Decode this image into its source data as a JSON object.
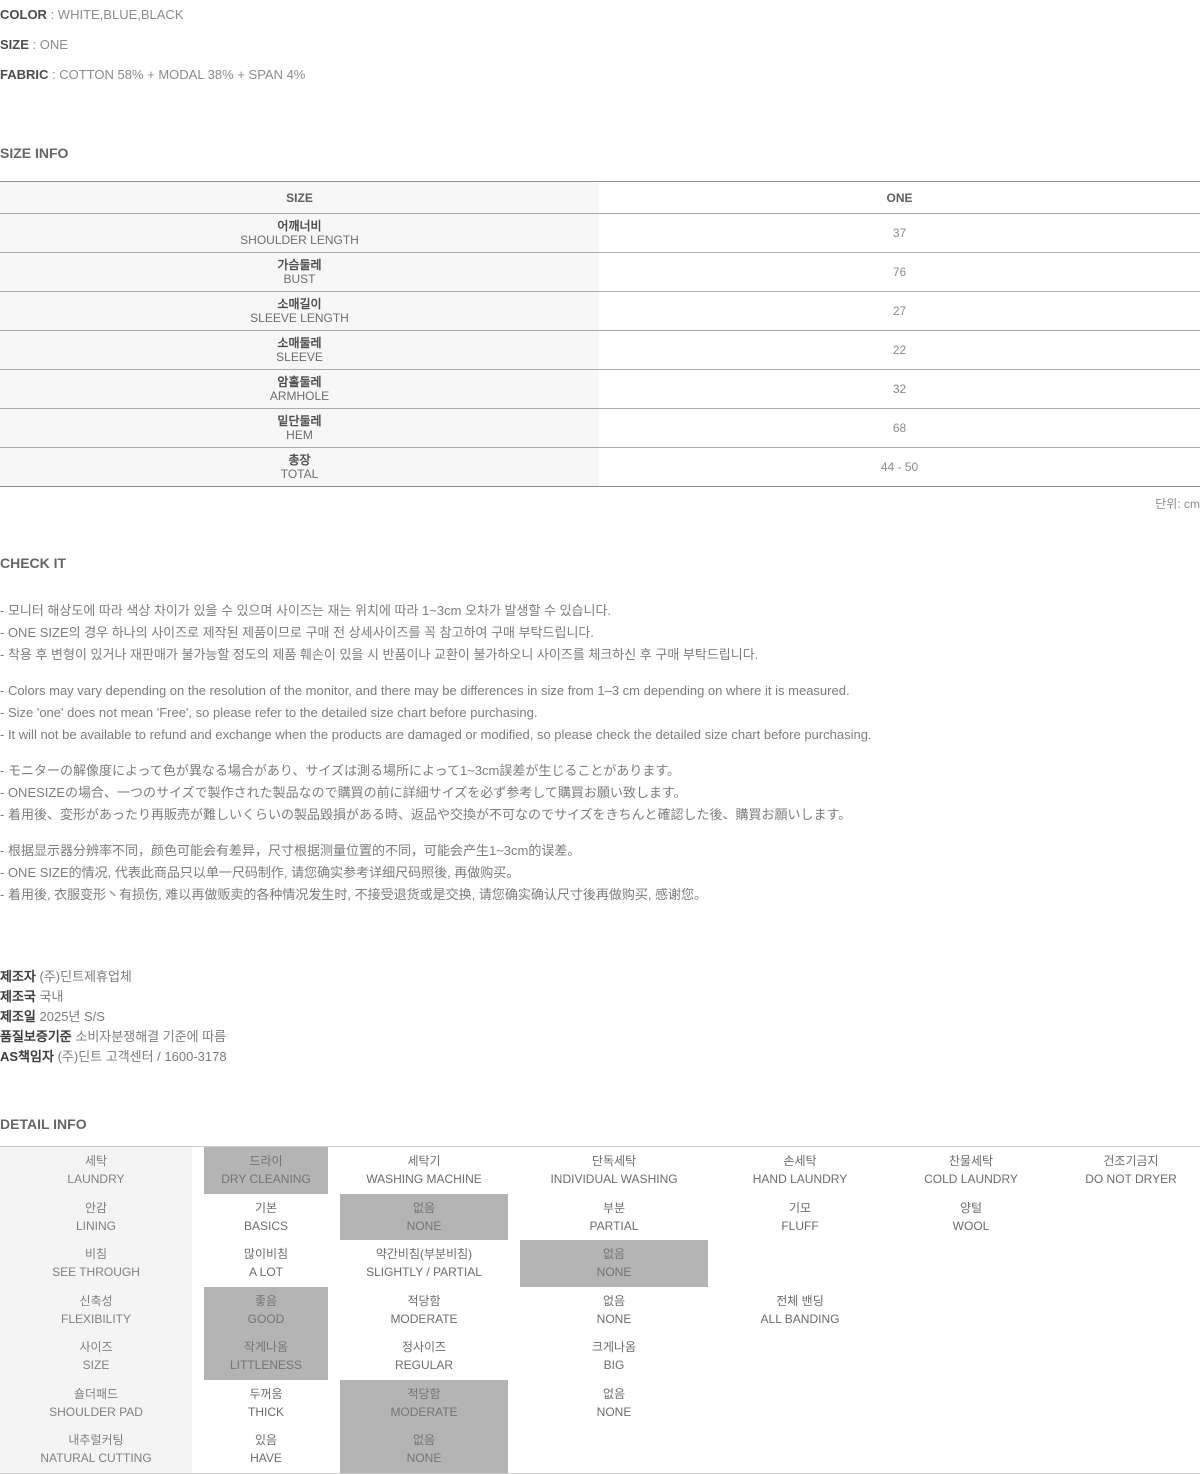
{
  "product_specs": {
    "separator": " : ",
    "items": [
      {
        "label": "COLOR",
        "value": "WHITE,BLUE,BLACK"
      },
      {
        "label": "SIZE",
        "value": "ONE"
      },
      {
        "label": "FABRIC",
        "value": "COTTON 58% + MODAL 38% + SPAN 4%"
      }
    ]
  },
  "size_info": {
    "heading": "SIZE INFO",
    "unit_note": "단위: cm",
    "table": {
      "col_headers": [
        "SIZE",
        "ONE"
      ],
      "rows": [
        {
          "kr": "어깨너비",
          "en": "SHOULDER LENGTH",
          "value": "37"
        },
        {
          "kr": "가슴둘레",
          "en": "BUST",
          "value": "76"
        },
        {
          "kr": "소매길이",
          "en": "SLEEVE LENGTH",
          "value": "27"
        },
        {
          "kr": "소매둘레",
          "en": "SLEEVE",
          "value": "22"
        },
        {
          "kr": "암홀둘레",
          "en": "ARMHOLE",
          "value": "32"
        },
        {
          "kr": "밑단둘레",
          "en": "HEM",
          "value": "68"
        },
        {
          "kr": "총장",
          "en": "TOTAL",
          "value": "44 - 50"
        }
      ]
    }
  },
  "check_it": {
    "heading": "CHECK IT",
    "notes_korean": [
      "- 모니터 해상도에 따라 색상 차이가 있을 수 있으며 사이즈는 재는 위치에 따라 1~3cm 오차가 발생할 수 있습니다.",
      "- ONE SIZE의 경우 하나의 사이즈로 제작된 제품이므로 구매 전 상세사이즈를 꼭 참고하여 구매 부탁드립니다.",
      "- 착용 후 변형이 있거나 재판매가 불가능할 정도의 제품 훼손이 있을 시 반품이나 교환이 불가하오니 사이즈를 체크하신 후 구매 부탁드립니다."
    ],
    "notes_english": [
      "- Colors may vary depending on the resolution of the monitor, and there may be differences in size from 1–3 cm depending on where it is measured.",
      "- Size 'one' does not mean 'Free', so please refer to the detailed size chart before purchasing.",
      "- It will not be available to refund and exchange when the products are damaged or modified, so please check the detailed size chart before purchasing."
    ],
    "notes_japanese": [
      "- モニターの解像度によって色が異なる場合があり、サイズは測る場所によって1~3cm誤差が生じることがあります。",
      "- ONESIZEの場合、一つのサイズで製作された製品なので購買の前に詳細サイズを必ず参考して購買お願い致します。",
      "- 着用後、変形があったり再販売が難しいくらいの製品毀損がある時、返品や交換が不可なのでサイズをきちんと確認した後、購買お願いします。"
    ],
    "notes_chinese": [
      "- 根据显示器分辨率不同，颜色可能会有差异，尺寸根据测量位置的不同，可能会产生1~3cm的误差。",
      "- ONE SIZE的情况, 代表此商品只以单一尺码制作, 请您确实参考详细尺码照後, 再做购买。",
      "- 着用後, 衣服变形丶有损伤, 难以再做贩卖的各种情况发生时, 不接受退货或是交换, 请您确实确认尺寸後再做购买, 感谢您。"
    ]
  },
  "manufacturer": {
    "items": [
      {
        "label": "제조자",
        "value": "(주)딘트제휴업체"
      },
      {
        "label": "제조국",
        "value": "국내"
      },
      {
        "label": "제조일",
        "value": "2025년 S/S"
      },
      {
        "label": "품질보증기준",
        "value": "소비자분쟁해결 기준에 따름"
      },
      {
        "label": "AS책임자",
        "value": "(주)딘트 고객센터 / 1600-3178"
      }
    ]
  },
  "detail_info": {
    "heading": "DETAIL INFO",
    "highlight_color": "#b4b4b4",
    "rows": [
      {
        "kr": "세탁",
        "en": "LAUNDRY",
        "options": [
          {
            "kr": "드라이",
            "en": "DRY CLEANING",
            "selected": true
          },
          {
            "kr": "세탁기",
            "en": "WASHING MACHINE",
            "selected": false
          },
          {
            "kr": "단독세탁",
            "en": "INDIVIDUAL WASHING",
            "selected": false
          },
          {
            "kr": "손세탁",
            "en": "HAND LAUNDRY",
            "selected": false
          },
          {
            "kr": "찬물세탁",
            "en": "COLD LAUNDRY",
            "selected": false
          },
          {
            "kr": "건조기금지",
            "en": "DO NOT DRYER",
            "selected": false
          }
        ]
      },
      {
        "kr": "안감",
        "en": "LINING",
        "options": [
          {
            "kr": "기본",
            "en": "BASICS",
            "selected": false
          },
          {
            "kr": "없음",
            "en": "NONE",
            "selected": true
          },
          {
            "kr": "부분",
            "en": "PARTIAL",
            "selected": false
          },
          {
            "kr": "기모",
            "en": "FLUFF",
            "selected": false
          },
          {
            "kr": "양털",
            "en": "WOOL",
            "selected": false
          }
        ]
      },
      {
        "kr": "비침",
        "en": "SEE THROUGH",
        "options": [
          {
            "kr": "많이비침",
            "en": "A LOT",
            "selected": false
          },
          {
            "kr": "약간비침(부분비침)",
            "en": "SLIGHTLY / PARTIAL",
            "selected": false
          },
          {
            "kr": "없음",
            "en": "NONE",
            "selected": true
          }
        ]
      },
      {
        "kr": "신축성",
        "en": "FLEXIBILITY",
        "options": [
          {
            "kr": "좋음",
            "en": "GOOD",
            "selected": true
          },
          {
            "kr": "적당함",
            "en": "MODERATE",
            "selected": false
          },
          {
            "kr": "없음",
            "en": "NONE",
            "selected": false
          },
          {
            "kr": "전체 밴딩",
            "en": "ALL BANDING",
            "selected": false
          }
        ]
      },
      {
        "kr": "사이즈",
        "en": "SIZE",
        "options": [
          {
            "kr": "작게나옴",
            "en": "LITTLENESS",
            "selected": true
          },
          {
            "kr": "정사이즈",
            "en": "REGULAR",
            "selected": false
          },
          {
            "kr": "크게나옴",
            "en": "BIG",
            "selected": false
          }
        ]
      },
      {
        "kr": "숄더패드",
        "en": "SHOULDER PAD",
        "options": [
          {
            "kr": "두꺼움",
            "en": "THICK",
            "selected": false
          },
          {
            "kr": "적당함",
            "en": "MODERATE",
            "selected": true
          },
          {
            "kr": "없음",
            "en": "NONE",
            "selected": false
          }
        ]
      },
      {
        "kr": "내추럴커팅",
        "en": "NATURAL CUTTING",
        "options": [
          {
            "kr": "있음",
            "en": "HAVE",
            "selected": false
          },
          {
            "kr": "없음",
            "en": "NONE",
            "selected": true
          }
        ]
      }
    ]
  }
}
